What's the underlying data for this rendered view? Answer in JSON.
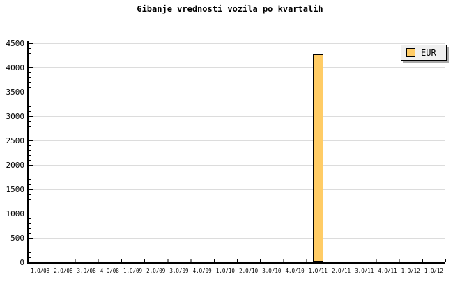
{
  "title": "Gibanje vrednosti vozila po kvartalih",
  "legend": {
    "label": "EUR"
  },
  "colors": {
    "bar_fill": "#FFCC66",
    "bar_border": "#000000",
    "grid": "#DCDCDC",
    "axis": "#000000",
    "legend_bg": "#F0F0F0",
    "legend_shadow": "#AAAAAA",
    "text": "#000000"
  },
  "chart_data": {
    "type": "bar",
    "title": "Gibanje vrednosti vozila po kvartalih",
    "categories": [
      "1.Q/08",
      "2.Q/08",
      "3.Q/08",
      "4.Q/08",
      "1.Q/09",
      "2.Q/09",
      "3.Q/09",
      "4.Q/09",
      "1.Q/10",
      "2.Q/10",
      "3.Q/10",
      "4.Q/10",
      "1.Q/11",
      "2.Q/11",
      "3.Q/11",
      "4.Q/11",
      "1.Q/12",
      "1.Q/12"
    ],
    "series": [
      {
        "name": "EUR",
        "values": [
          0,
          0,
          0,
          0,
          0,
          0,
          0,
          0,
          0,
          0,
          0,
          0,
          4240,
          0,
          0,
          0,
          0,
          0
        ]
      }
    ],
    "xlabel": "",
    "ylabel": "",
    "ylim": [
      0,
      4500
    ],
    "yticks": [
      0,
      500,
      1000,
      1500,
      2000,
      2500,
      3000,
      3500,
      4000,
      4500
    ],
    "y_minor_step": 100,
    "grid": "horizontal",
    "legend_position": "top-right"
  }
}
